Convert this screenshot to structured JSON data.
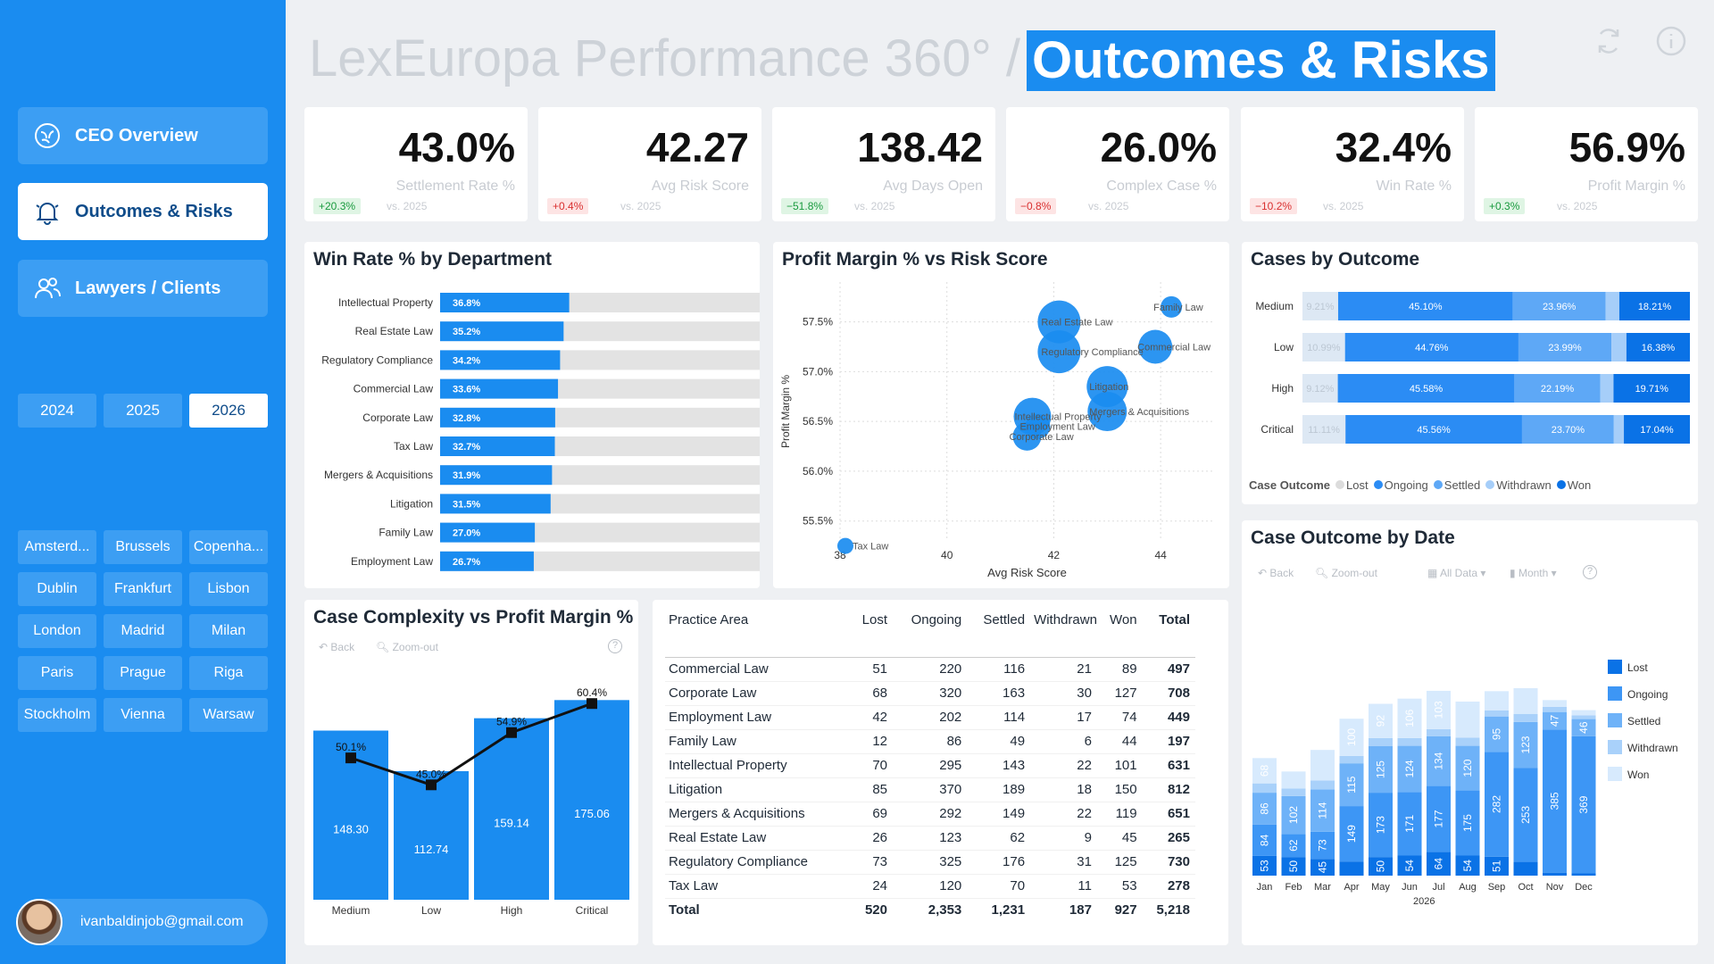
{
  "app": {
    "title_prefix": "LexEuropa Performance 360° /",
    "title_highlight": "Outcomes & Risks"
  },
  "nav": {
    "items": [
      {
        "label": "CEO Overview",
        "icon": "brain-icon",
        "active": false
      },
      {
        "label": "Outcomes & Risks",
        "icon": "bell-icon",
        "active": true
      },
      {
        "label": "Lawyers / Clients",
        "icon": "users-icon",
        "active": false
      }
    ]
  },
  "years": {
    "items": [
      "2024",
      "2025",
      "2026"
    ],
    "selected": "2026"
  },
  "cities": [
    "Amsterd...",
    "Brussels",
    "Copenha...",
    "Dublin",
    "Frankfurt",
    "Lisbon",
    "London",
    "Madrid",
    "Milan",
    "Paris",
    "Prague",
    "Riga",
    "Stockholm",
    "Vienna",
    "Warsaw"
  ],
  "user": {
    "email": "ivanbaldinjob@gmail.com"
  },
  "kpis": [
    {
      "value": "43.0%",
      "label": "Settlement Rate %",
      "delta": "+20.3%",
      "delta_dir": "pos",
      "vs": "vs. 2025"
    },
    {
      "value": "42.27",
      "label": "Avg Risk Score",
      "delta": "+0.4%",
      "delta_dir": "neg",
      "vs": "vs. 2025"
    },
    {
      "value": "138.42",
      "label": "Avg Days Open",
      "delta": "−51.8%",
      "delta_dir": "pos",
      "vs": "vs. 2025"
    },
    {
      "value": "26.0%",
      "label": "Complex Case %",
      "delta": "−0.8%",
      "delta_dir": "neg",
      "vs": "vs. 2025"
    },
    {
      "value": "32.4%",
      "label": "Win Rate %",
      "delta": "−10.2%",
      "delta_dir": "neg",
      "vs": "vs. 2025"
    },
    {
      "value": "56.9%",
      "label": "Profit Margin %",
      "delta": "+0.3%",
      "delta_dir": "pos",
      "vs": "vs. 2025"
    }
  ],
  "colors": {
    "accent": "#1a8cf0",
    "lost": "#1a73e8",
    "ongoing": "#4a9ff5",
    "settled": "#7bbaf7",
    "withdrawn": "#b3d7fa",
    "won": "#e3f0fd"
  },
  "controls": {
    "back": "Back",
    "zoom_out": "Zoom-out",
    "all_data": "All Data",
    "month": "Month"
  },
  "chart_data": [
    {
      "id": "win-rate",
      "type": "bar",
      "title": "Win Rate % by Department",
      "categories": [
        "Intellectual Property",
        "Real Estate Law",
        "Regulatory Compliance",
        "Commercial Law",
        "Corporate Law",
        "Tax Law",
        "Mergers & Acquisitions",
        "Litigation",
        "Family Law",
        "Employment Law"
      ],
      "values": [
        36.8,
        35.2,
        34.2,
        33.6,
        32.8,
        32.7,
        31.9,
        31.5,
        27.0,
        26.7
      ],
      "labels": [
        "36.8%",
        "35.2%",
        "34.2%",
        "33.6%",
        "32.8%",
        "32.7%",
        "31.9%",
        "31.5%",
        "27.0%",
        "26.7%"
      ],
      "xlim": [
        0,
        100
      ]
    },
    {
      "id": "scatter",
      "type": "scatter",
      "title": "Profit Margin % vs Risk Score",
      "xlabel": "Avg Risk Score",
      "ylabel": "Profit Margin %",
      "xlim": [
        38,
        45
      ],
      "ylim": [
        55.3,
        57.9
      ],
      "xticks": [
        "38",
        "40",
        "42",
        "44"
      ],
      "yticks": [
        "55.5%",
        "56.0%",
        "56.5%",
        "57.0%",
        "57.5%"
      ],
      "points": [
        {
          "label": "Real Estate Law",
          "x": 42.1,
          "y": 57.5,
          "size": 24
        },
        {
          "label": "Family Law",
          "x": 44.2,
          "y": 57.65,
          "size": 12
        },
        {
          "label": "Regulatory Compliance",
          "x": 42.1,
          "y": 57.2,
          "size": 24
        },
        {
          "label": "Commercial Law",
          "x": 43.9,
          "y": 57.25,
          "size": 19
        },
        {
          "label": "Litigation",
          "x": 43.0,
          "y": 56.85,
          "size": 23
        },
        {
          "label": "Intellectual Property",
          "x": 41.6,
          "y": 56.55,
          "size": 21
        },
        {
          "label": "Mergers & Acquisitions",
          "x": 43.0,
          "y": 56.6,
          "size": 22
        },
        {
          "label": "Corporate Law",
          "x": 41.5,
          "y": 56.35,
          "size": 16
        },
        {
          "label": "Employment Law",
          "x": 41.7,
          "y": 56.45,
          "size": 14
        },
        {
          "label": "Tax Law",
          "x": 38.1,
          "y": 55.25,
          "size": 9
        }
      ]
    },
    {
      "id": "cases-by-outcome",
      "type": "bar",
      "title": "Cases by Outcome",
      "legend_title": "Case Outcome",
      "series_names": [
        "Lost",
        "Ongoing",
        "Settled",
        "Withdrawn",
        "Won"
      ],
      "categories": [
        "Medium",
        "Low",
        "High",
        "Critical"
      ],
      "rows": [
        {
          "values": [
            9.21,
            45.1,
            23.96,
            3.52,
            18.21
          ],
          "labels": [
            "9.21%",
            "45.10%",
            "23.96%",
            "",
            "18.21%"
          ]
        },
        {
          "values": [
            10.99,
            44.76,
            23.99,
            3.88,
            16.38
          ],
          "labels": [
            "10.99%",
            "44.76%",
            "23.99%",
            "",
            "16.38%"
          ]
        },
        {
          "values": [
            9.12,
            45.58,
            22.19,
            3.4,
            19.71
          ],
          "labels": [
            "9.12%",
            "45.58%",
            "22.19%",
            "",
            "19.71%"
          ]
        },
        {
          "values": [
            11.11,
            45.56,
            23.7,
            2.59,
            17.04
          ],
          "labels": [
            "11.11%",
            "45.56%",
            "23.70%",
            "",
            "17.04%"
          ]
        }
      ]
    },
    {
      "id": "complexity",
      "type": "bar",
      "title": "Case Complexity vs Profit Margin %",
      "categories": [
        "Medium",
        "Low",
        "High",
        "Critical"
      ],
      "bar_values": [
        148.3,
        112.74,
        159.14,
        175.06
      ],
      "bar_labels": [
        "148.30",
        "112.74",
        "159.14",
        "175.06"
      ],
      "line_values": [
        50.1,
        45.0,
        54.9,
        60.4
      ],
      "line_labels": [
        "50.1%",
        "45.0%",
        "54.9%",
        "60.4%"
      ],
      "ylim": [
        0,
        180
      ]
    },
    {
      "id": "outcome-by-date",
      "type": "bar",
      "title": "Case Outcome by Date",
      "xlabel": "2026",
      "categories": [
        "Jan",
        "Feb",
        "Mar",
        "Apr",
        "May",
        "Jun",
        "Jul",
        "Aug",
        "Sep",
        "Oct",
        "Nov",
        "Dec"
      ],
      "series": [
        {
          "name": "Lost",
          "values": [
            53,
            50,
            45,
            38,
            50,
            54,
            64,
            54,
            51,
            37,
            8,
            6
          ],
          "labels": [
            "53",
            "50",
            "45",
            "38",
            "50",
            "54",
            "64",
            "54",
            "51",
            "37",
            "",
            ""
          ]
        },
        {
          "name": "Ongoing",
          "values": [
            84,
            62,
            73,
            149,
            173,
            171,
            177,
            175,
            282,
            253,
            385,
            369
          ],
          "labels": [
            "84",
            "62",
            "73",
            "149",
            "173",
            "171",
            "177",
            "175",
            "282",
            "253",
            "385",
            "369"
          ]
        },
        {
          "name": "Settled",
          "values": [
            86,
            102,
            114,
            115,
            125,
            124,
            134,
            120,
            95,
            123,
            47,
            46
          ],
          "labels": [
            "86",
            "102",
            "114",
            "115",
            "125",
            "124",
            "134",
            "120",
            "95",
            "123",
            "47",
            "46"
          ]
        },
        {
          "name": "Withdrawn",
          "values": [
            25,
            20,
            24,
            20,
            22,
            21,
            19,
            22,
            16,
            22,
            14,
            10
          ],
          "labels": [
            "25",
            "",
            "24",
            "",
            "",
            "",
            "",
            "",
            "",
            "",
            "",
            ""
          ]
        },
        {
          "name": "Won",
          "values": [
            68,
            46,
            82,
            100,
            92,
            106,
            103,
            97,
            52,
            69,
            18,
            14
          ],
          "labels": [
            "68",
            "",
            "",
            "100",
            "92",
            "106",
            "103",
            "",
            "",
            "",
            "",
            ""
          ]
        }
      ],
      "ylim": [
        0,
        720
      ]
    }
  ],
  "table": {
    "headers": [
      "Practice Area",
      "Lost",
      "Ongoing",
      "Settled",
      "Withdrawn",
      "Won",
      "Total"
    ],
    "rows": [
      [
        "Commercial Law",
        "51",
        "220",
        "116",
        "21",
        "89",
        "497"
      ],
      [
        "Corporate Law",
        "68",
        "320",
        "163",
        "30",
        "127",
        "708"
      ],
      [
        "Employment Law",
        "42",
        "202",
        "114",
        "17",
        "74",
        "449"
      ],
      [
        "Family Law",
        "12",
        "86",
        "49",
        "6",
        "44",
        "197"
      ],
      [
        "Intellectual Property",
        "70",
        "295",
        "143",
        "22",
        "101",
        "631"
      ],
      [
        "Litigation",
        "85",
        "370",
        "189",
        "18",
        "150",
        "812"
      ],
      [
        "Mergers & Acquisitions",
        "69",
        "292",
        "149",
        "22",
        "119",
        "651"
      ],
      [
        "Real Estate Law",
        "26",
        "123",
        "62",
        "9",
        "45",
        "265"
      ],
      [
        "Regulatory Compliance",
        "73",
        "325",
        "176",
        "31",
        "125",
        "730"
      ],
      [
        "Tax Law",
        "24",
        "120",
        "70",
        "11",
        "53",
        "278"
      ]
    ],
    "total": [
      "Total",
      "520",
      "2,353",
      "1,231",
      "187",
      "927",
      "5,218"
    ]
  }
}
